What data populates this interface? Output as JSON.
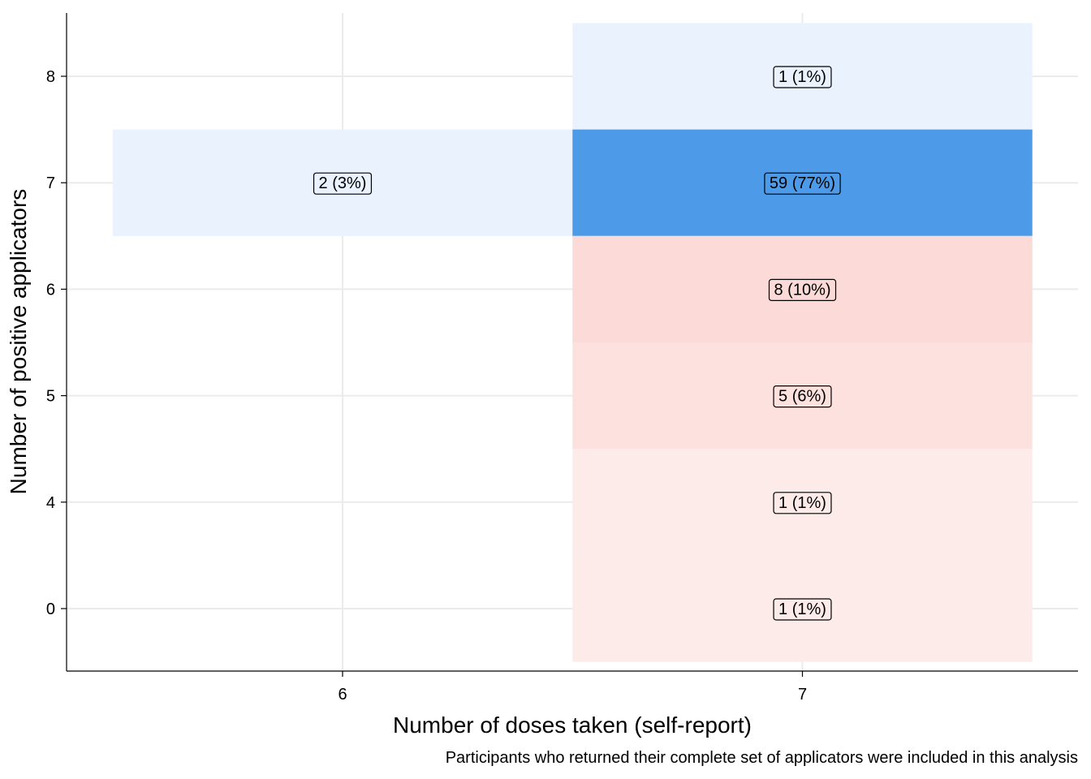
{
  "chart_data": {
    "type": "heatmap",
    "title": "",
    "xlabel": "Number of doses taken (self-report)",
    "ylabel": "Number of positive applicators",
    "caption": "Participants who returned their complete set of applicators were included in this analysis",
    "x_ticks": [
      6,
      7
    ],
    "y_ticks": [
      0,
      4,
      5,
      6,
      7,
      8
    ],
    "grid": true,
    "legend": "none",
    "cells": [
      {
        "x": 6,
        "y": 7,
        "count": 2,
        "label": "2 (3%)",
        "color": "#e9f2fd"
      },
      {
        "x": 7,
        "y": 8,
        "count": 1,
        "label": "1 (1%)",
        "color": "#eaf3fd"
      },
      {
        "x": 7,
        "y": 7,
        "count": 59,
        "label": "59 (77%)",
        "color": "#4d9ae8"
      },
      {
        "x": 7,
        "y": 6,
        "count": 8,
        "label": "8 (10%)",
        "color": "#fbdad7"
      },
      {
        "x": 7,
        "y": 5,
        "count": 5,
        "label": "5 (6%)",
        "color": "#fce1de"
      },
      {
        "x": 7,
        "y": 4,
        "count": 1,
        "label": "1 (1%)",
        "color": "#fdebea"
      },
      {
        "x": 7,
        "y": 0,
        "count": 1,
        "label": "1 (1%)",
        "color": "#fdebea"
      }
    ]
  }
}
